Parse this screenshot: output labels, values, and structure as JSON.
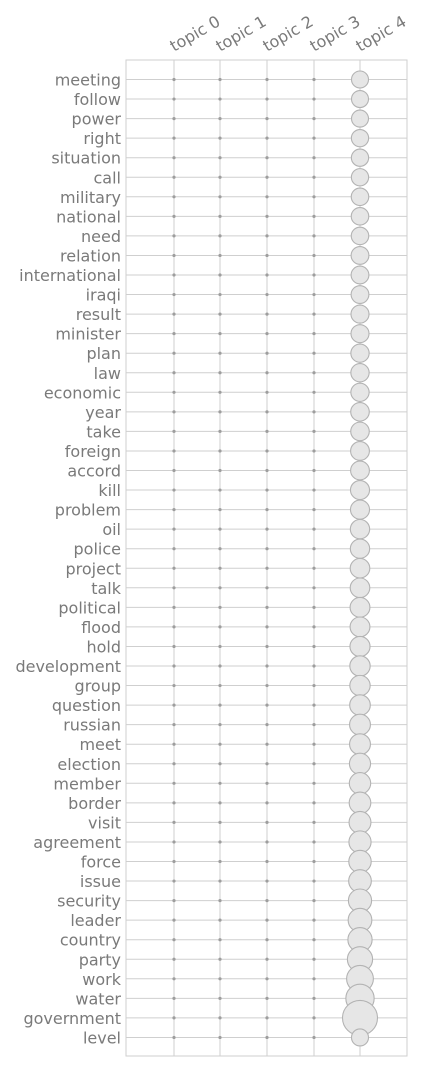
{
  "chart_data": {
    "type": "scatter",
    "subtype": "bubble-matrix",
    "title": "",
    "xlabel": "",
    "ylabel": "",
    "grid": true,
    "topics": [
      "topic 0",
      "topic 1",
      "topic 2",
      "topic 3",
      "topic 4"
    ],
    "terms": [
      "meeting",
      "follow",
      "power",
      "right",
      "situation",
      "call",
      "military",
      "national",
      "need",
      "relation",
      "international",
      "iraqi",
      "result",
      "minister",
      "plan",
      "law",
      "economic",
      "year",
      "take",
      "foreign",
      "accord",
      "kill",
      "problem",
      "oil",
      "police",
      "project",
      "talk",
      "political",
      "flood",
      "hold",
      "development",
      "group",
      "question",
      "russian",
      "meet",
      "election",
      "member",
      "border",
      "visit",
      "agreement",
      "force",
      "issue",
      "security",
      "leader",
      "country",
      "party",
      "work",
      "water",
      "government",
      "level"
    ],
    "highlight_topic_index": 4,
    "weights_topic4": [
      0.3,
      0.3,
      0.3,
      0.31,
      0.31,
      0.31,
      0.32,
      0.32,
      0.32,
      0.33,
      0.33,
      0.33,
      0.34,
      0.34,
      0.35,
      0.35,
      0.35,
      0.36,
      0.36,
      0.37,
      0.37,
      0.38,
      0.38,
      0.39,
      0.39,
      0.4,
      0.4,
      0.41,
      0.41,
      0.42,
      0.43,
      0.43,
      0.44,
      0.45,
      0.45,
      0.46,
      0.47,
      0.48,
      0.49,
      0.5,
      0.51,
      0.52,
      0.54,
      0.56,
      0.58,
      0.62,
      0.68,
      0.74,
      1.0,
      0.3
    ],
    "weights_other_topics": 0.01,
    "colors": {
      "bubble_fill": "#e6e6e6",
      "bubble_stroke": "#b3b3b3",
      "grid": "#cfcfcf",
      "text": "#7a7a7a",
      "small_dot": "#9e9e9e"
    }
  }
}
